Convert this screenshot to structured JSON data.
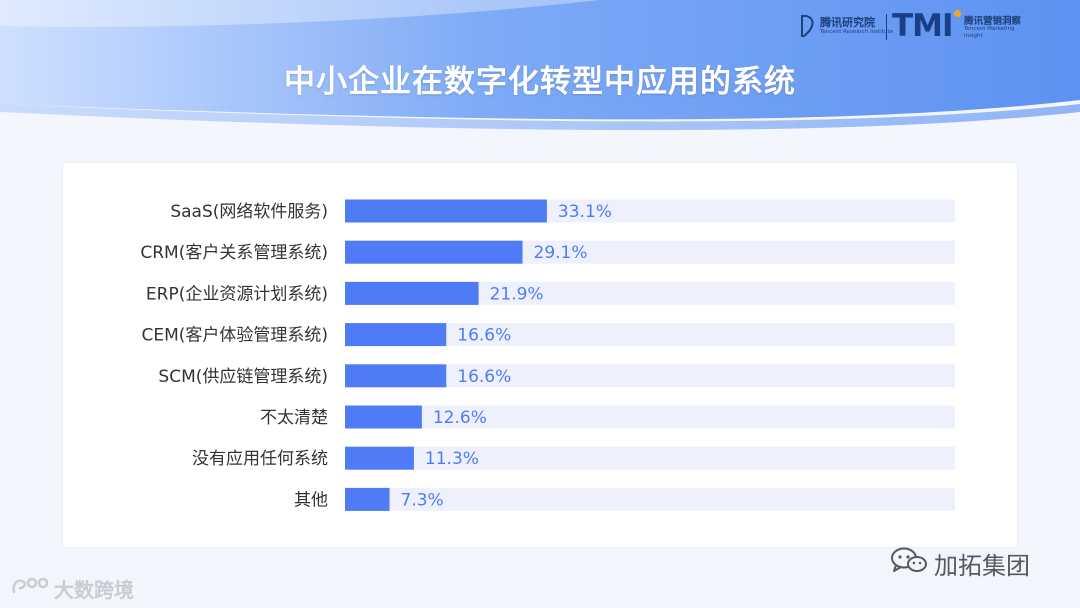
{
  "slide": {
    "title": "中小企业在数字化转型中应用的系统"
  },
  "logos": {
    "institute_name": "腾讯研究院",
    "institute_sub": "Tencent Research Institute",
    "tmi_mark": "TMI",
    "tmi_name": "腾讯营销洞察",
    "tmi_sub": "Tencent Marketing Insight"
  },
  "colors": {
    "bar": "#4f7cf6",
    "track": "#eef1fc",
    "value_label": "#4f7cf6",
    "category_label": "#333333",
    "header_light": "#d9e6ff",
    "header_dark": "#5e93f2"
  },
  "chart_data": {
    "type": "bar",
    "orientation": "horizontal",
    "categories": [
      "SaaS(网络软件服务)",
      "CRM(客户关系管理系统)",
      "ERP(企业资源计划系统)",
      "CEM(客户体验管理系统)",
      "SCM(供应链管理系统)",
      "不太清楚",
      "没有应用任何系统",
      "其他"
    ],
    "values": [
      33.1,
      29.1,
      21.9,
      16.6,
      16.6,
      12.6,
      11.3,
      7.3
    ],
    "value_labels": [
      "33.1%",
      "29.1%",
      "21.9%",
      "16.6%",
      "16.6%",
      "12.6%",
      "11.3%",
      "7.3%"
    ],
    "unit": "%",
    "xlim": [
      0,
      100
    ],
    "grid": false,
    "legend": "none"
  },
  "footer": {
    "left_watermark": "大数跨境",
    "right_watermark": "加拓集团"
  }
}
